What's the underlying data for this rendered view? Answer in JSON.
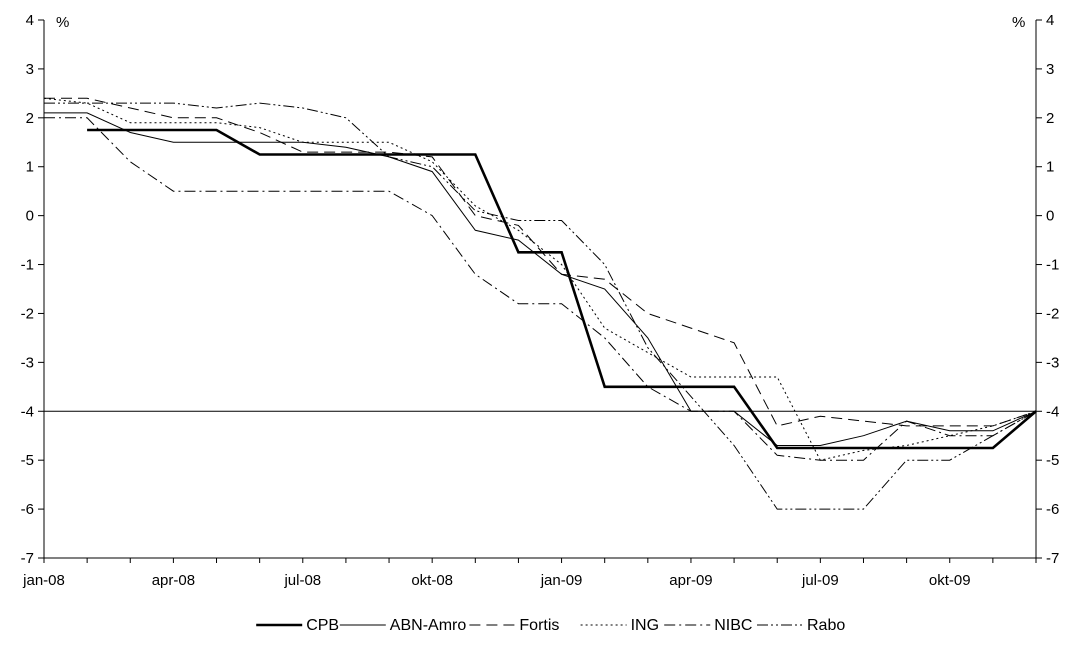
{
  "chart_data": {
    "type": "line",
    "title": "",
    "xlabel": "",
    "ylabel": "",
    "left_unit": "%",
    "right_unit": "%",
    "x_start": "jan-08",
    "x_end": "dec-09",
    "x_ticks": [
      {
        "date": "jan-08",
        "label": "jan-08"
      },
      {
        "date": "apr-08",
        "label": "apr-08"
      },
      {
        "date": "jul-08",
        "label": "jul-08"
      },
      {
        "date": "okt-08",
        "label": "okt-08"
      },
      {
        "date": "jan-09",
        "label": "jan-09"
      },
      {
        "date": "apr-09",
        "label": "apr-09"
      },
      {
        "date": "jul-09",
        "label": "jul-09"
      },
      {
        "date": "okt-09",
        "label": "okt-09"
      }
    ],
    "ylim": [
      -7,
      4
    ],
    "y_ticks": [
      4,
      3,
      2,
      1,
      0,
      -1,
      -2,
      -3,
      -4,
      -5,
      -6,
      -7
    ],
    "reference_line": -4,
    "grid": false,
    "legend_position": "bottom",
    "series": [
      {
        "name": "CPB",
        "dash": "",
        "width": 2.6,
        "points": [
          [
            "feb-08",
            1.75
          ],
          [
            "may-08",
            1.75
          ],
          [
            "jun-08",
            1.25
          ],
          [
            "nov-08",
            1.25
          ],
          [
            "dec-08",
            -0.75
          ],
          [
            "jan-09",
            -0.75
          ],
          [
            "feb-09",
            -3.5
          ],
          [
            "may-09",
            -3.5
          ],
          [
            "jun-09",
            -4.75
          ],
          [
            "nov-09",
            -4.75
          ],
          [
            "dec-09",
            -4.0
          ]
        ]
      },
      {
        "name": "ABN-Amro",
        "dash": "",
        "width": 1.0,
        "points": [
          [
            "jan-08",
            2.1
          ],
          [
            "feb-08",
            2.1
          ],
          [
            "mar-08",
            1.7
          ],
          [
            "apr-08",
            1.5
          ],
          [
            "may-08",
            1.5
          ],
          [
            "jun-08",
            1.5
          ],
          [
            "jul-08",
            1.5
          ],
          [
            "aug-08",
            1.4
          ],
          [
            "sep-08",
            1.2
          ],
          [
            "okt-08",
            0.9
          ],
          [
            "nov-08",
            -0.3
          ],
          [
            "dec-08",
            -0.5
          ],
          [
            "jan-09",
            -1.2
          ],
          [
            "feb-09",
            -1.5
          ],
          [
            "mar-09",
            -2.5
          ],
          [
            "apr-09",
            -4.0
          ],
          [
            "may-09",
            -4.0
          ],
          [
            "jun-09",
            -4.7
          ],
          [
            "jul-09",
            -4.7
          ],
          [
            "aug-09",
            -4.5
          ],
          [
            "sep-09",
            -4.2
          ],
          [
            "okt-09",
            -4.4
          ],
          [
            "nov-09",
            -4.4
          ],
          [
            "dec-09",
            -4.0
          ]
        ]
      },
      {
        "name": "Fortis",
        "dash": "11,6",
        "width": 1.0,
        "points": [
          [
            "jan-08",
            2.4
          ],
          [
            "feb-08",
            2.4
          ],
          [
            "mar-08",
            2.2
          ],
          [
            "apr-08",
            2.0
          ],
          [
            "may-08",
            2.0
          ],
          [
            "jun-08",
            1.7
          ],
          [
            "jul-08",
            1.3
          ],
          [
            "aug-08",
            1.3
          ],
          [
            "sep-08",
            1.3
          ],
          [
            "okt-08",
            1.2
          ],
          [
            "nov-08",
            0.0
          ],
          [
            "dec-08",
            -0.2
          ],
          [
            "jan-09",
            -1.2
          ],
          [
            "feb-09",
            -1.3
          ],
          [
            "mar-09",
            -2.0
          ],
          [
            "apr-09",
            -2.3
          ],
          [
            "may-09",
            -2.6
          ],
          [
            "jun-09",
            -4.3
          ],
          [
            "jul-09",
            -4.1
          ],
          [
            "aug-09",
            -4.2
          ],
          [
            "sep-09",
            -4.3
          ],
          [
            "okt-09",
            -4.3
          ],
          [
            "nov-09",
            -4.3
          ],
          [
            "dec-09",
            -4.0
          ]
        ]
      },
      {
        "name": "ING",
        "dash": "2,3",
        "width": 1.0,
        "points": [
          [
            "jan-08",
            2.4
          ],
          [
            "feb-08",
            2.3
          ],
          [
            "mar-08",
            1.9
          ],
          [
            "apr-08",
            1.9
          ],
          [
            "may-08",
            1.9
          ],
          [
            "jun-08",
            1.8
          ],
          [
            "jul-08",
            1.5
          ],
          [
            "aug-08",
            1.5
          ],
          [
            "sep-08",
            1.5
          ],
          [
            "okt-08",
            1.1
          ],
          [
            "nov-08",
            0.2
          ],
          [
            "dec-08",
            -0.3
          ],
          [
            "jan-09",
            -1.0
          ],
          [
            "feb-09",
            -2.3
          ],
          [
            "mar-09",
            -2.8
          ],
          [
            "apr-09",
            -3.3
          ],
          [
            "may-09",
            -3.3
          ],
          [
            "jun-09",
            -3.3
          ],
          [
            "jul-09",
            -5.0
          ],
          [
            "aug-09",
            -4.8
          ],
          [
            "sep-09",
            -4.7
          ],
          [
            "okt-09",
            -4.5
          ],
          [
            "nov-09",
            -4.3
          ],
          [
            "dec-09",
            -4.0
          ]
        ]
      },
      {
        "name": "NIBC",
        "dash": "11,4,2,4",
        "width": 1.0,
        "points": [
          [
            "jan-08",
            2.0
          ],
          [
            "feb-08",
            2.0
          ],
          [
            "mar-08",
            1.1
          ],
          [
            "apr-08",
            0.5
          ],
          [
            "may-08",
            0.5
          ],
          [
            "jun-08",
            0.5
          ],
          [
            "jul-08",
            0.5
          ],
          [
            "aug-08",
            0.5
          ],
          [
            "sep-08",
            0.5
          ],
          [
            "okt-08",
            0.0
          ],
          [
            "nov-08",
            -1.2
          ],
          [
            "dec-08",
            -1.8
          ],
          [
            "jan-09",
            -1.8
          ],
          [
            "feb-09",
            -2.5
          ],
          [
            "mar-09",
            -3.5
          ],
          [
            "apr-09",
            -4.0
          ],
          [
            "may-09",
            -4.0
          ],
          [
            "jun-09",
            -4.9
          ],
          [
            "jul-09",
            -5.0
          ],
          [
            "aug-09",
            -5.0
          ],
          [
            "sep-09",
            -4.2
          ],
          [
            "okt-09",
            -4.5
          ],
          [
            "nov-09",
            -4.5
          ],
          [
            "dec-09",
            -4.0
          ]
        ]
      },
      {
        "name": "Rabo",
        "dash": "11,3,2,3,2,3",
        "width": 1.0,
        "points": [
          [
            "jan-08",
            2.3
          ],
          [
            "feb-08",
            2.3
          ],
          [
            "mar-08",
            2.3
          ],
          [
            "apr-08",
            2.3
          ],
          [
            "may-08",
            2.2
          ],
          [
            "jun-08",
            2.3
          ],
          [
            "jul-08",
            2.2
          ],
          [
            "aug-08",
            2.0
          ],
          [
            "sep-08",
            1.2
          ],
          [
            "okt-08",
            1.0
          ],
          [
            "nov-08",
            0.1
          ],
          [
            "dec-08",
            -0.1
          ],
          [
            "jan-09",
            -0.1
          ],
          [
            "feb-09",
            -1.0
          ],
          [
            "mar-09",
            -2.7
          ],
          [
            "apr-09",
            -3.7
          ],
          [
            "may-09",
            -4.7
          ],
          [
            "jun-09",
            -6.0
          ],
          [
            "jul-09",
            -6.0
          ],
          [
            "aug-09",
            -6.0
          ],
          [
            "sep-09",
            -5.0
          ],
          [
            "okt-09",
            -5.0
          ],
          [
            "nov-09",
            -4.5
          ],
          [
            "dec-09",
            -4.0
          ]
        ]
      }
    ]
  }
}
